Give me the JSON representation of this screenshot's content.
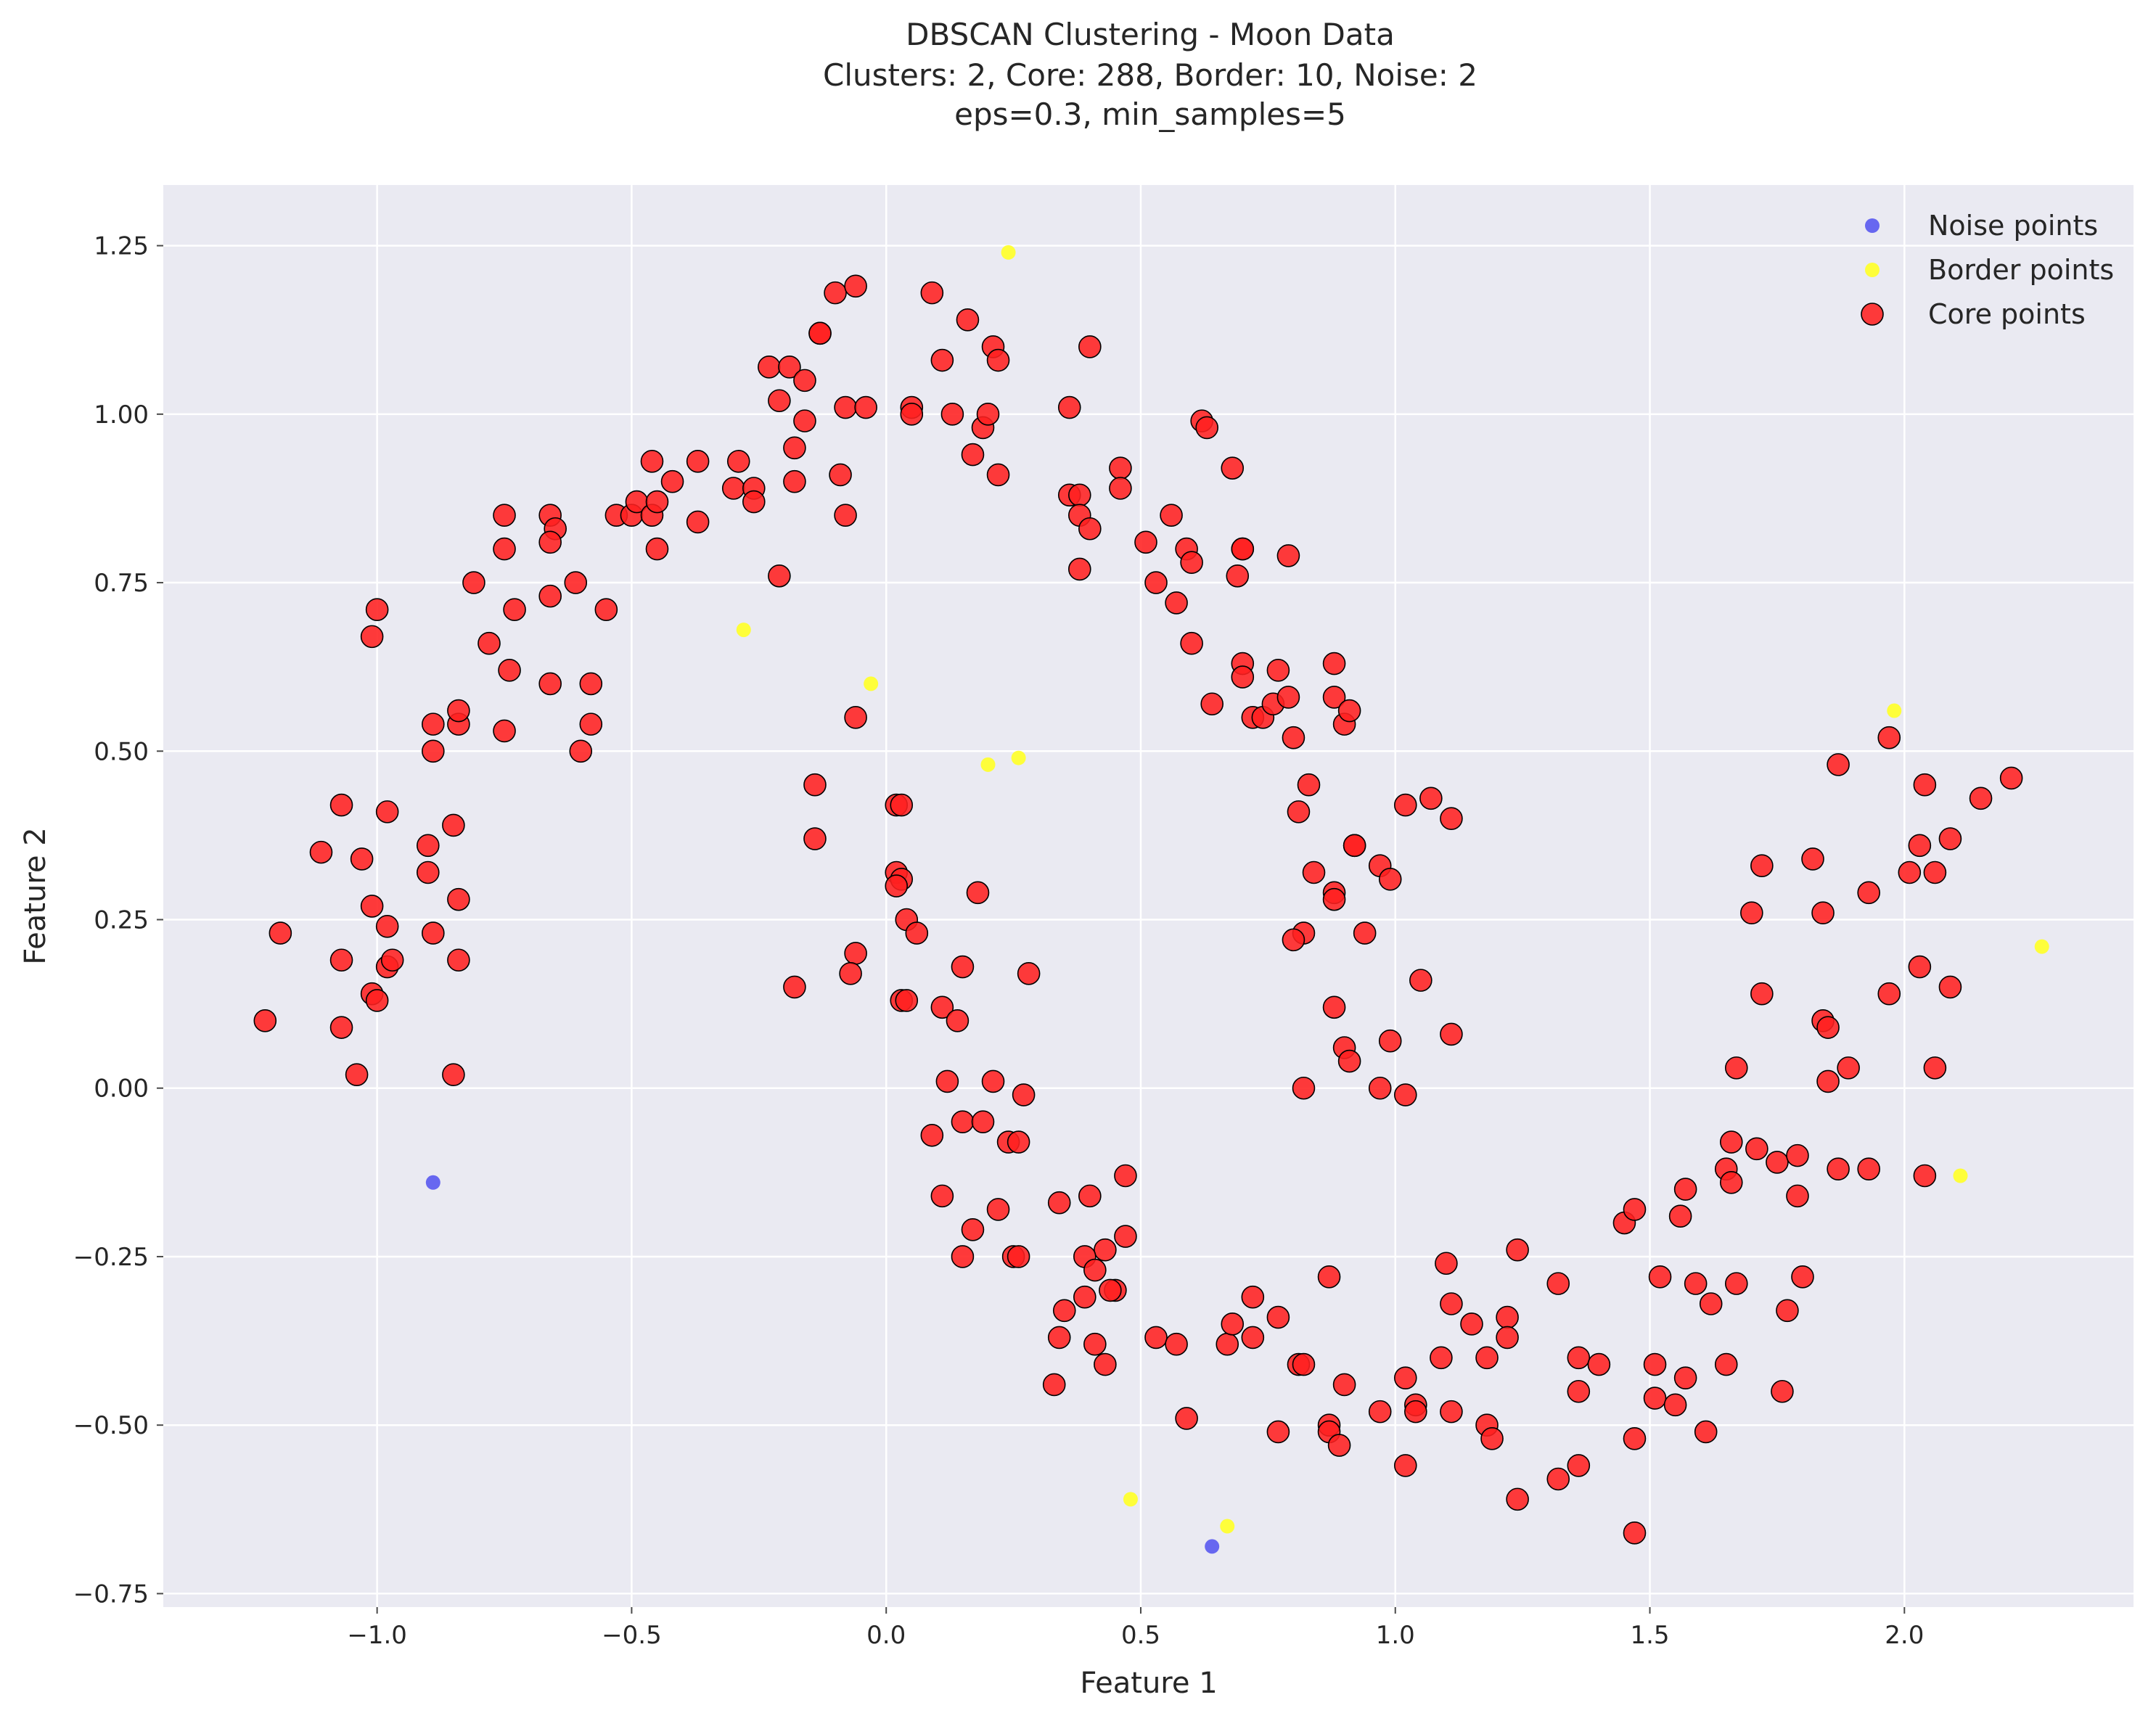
{
  "chart_data": {
    "type": "scatter",
    "title": "DBSCAN Clustering - Moon Data",
    "subtitle": "Clusters: 2, Core: 288, Border: 10, Noise: 2",
    "subtitle2": "eps=0.3, min_samples=5",
    "xlabel": "Feature 1",
    "ylabel": "Feature 2",
    "xlim": [
      -1.42,
      2.45
    ],
    "ylim": [
      -0.77,
      1.34
    ],
    "xticks": [
      -1.0,
      -0.5,
      0.0,
      0.5,
      1.0,
      1.5,
      2.0
    ],
    "xtick_labels": [
      "−1.0",
      "−0.5",
      "0.0",
      "0.5",
      "1.0",
      "1.5",
      "2.0"
    ],
    "yticks": [
      -0.75,
      -0.5,
      -0.25,
      0.0,
      0.25,
      0.5,
      0.75,
      1.0,
      1.25
    ],
    "ytick_labels": [
      "−0.75",
      "−0.50",
      "−0.25",
      "0.00",
      "0.25",
      "0.50",
      "0.75",
      "1.00",
      "1.25"
    ],
    "grid": true,
    "background": "#eaeaf2",
    "legend_position": "top-right",
    "series": [
      {
        "name": "Noise points",
        "color": "#5b5bf0",
        "marker": "small",
        "points": [
          [
            -0.89,
            -0.14
          ],
          [
            0.64,
            -0.68
          ]
        ]
      },
      {
        "name": "Border points",
        "color": "#ffff2a",
        "marker": "small",
        "points": [
          [
            0.24,
            1.24
          ],
          [
            -0.28,
            0.68
          ],
          [
            -0.03,
            0.6
          ],
          [
            0.2,
            0.48
          ],
          [
            0.26,
            0.49
          ],
          [
            1.98,
            0.56
          ],
          [
            2.27,
            0.21
          ],
          [
            2.11,
            -0.13
          ],
          [
            0.48,
            -0.61
          ],
          [
            0.67,
            -0.65
          ]
        ]
      },
      {
        "name": "Core points",
        "color": "#ff2020",
        "edge": "#000000",
        "marker": "large",
        "points": [
          [
            -1.22,
            0.1
          ],
          [
            -1.19,
            0.23
          ],
          [
            -1.11,
            0.35
          ],
          [
            -1.07,
            0.42
          ],
          [
            -1.07,
            0.19
          ],
          [
            -1.07,
            0.09
          ],
          [
            -1.04,
            0.02
          ],
          [
            -1.03,
            0.34
          ],
          [
            -1.01,
            0.27
          ],
          [
            -1.01,
            0.14
          ],
          [
            -1.0,
            0.13
          ],
          [
            -0.98,
            0.41
          ],
          [
            -0.98,
            0.24
          ],
          [
            -0.98,
            0.18
          ],
          [
            -0.97,
            0.19
          ],
          [
            -1.0,
            0.71
          ],
          [
            -1.01,
            0.67
          ],
          [
            -0.9,
            0.36
          ],
          [
            -0.9,
            0.32
          ],
          [
            -0.89,
            0.23
          ],
          [
            -0.89,
            0.54
          ],
          [
            -0.89,
            0.5
          ],
          [
            -0.85,
            0.39
          ],
          [
            -0.84,
            0.28
          ],
          [
            -0.84,
            0.19
          ],
          [
            -0.85,
            0.02
          ],
          [
            -0.84,
            0.54
          ],
          [
            -0.84,
            0.56
          ],
          [
            -0.81,
            0.75
          ],
          [
            -0.78,
            0.66
          ],
          [
            -0.75,
            0.85
          ],
          [
            -0.75,
            0.8
          ],
          [
            -0.74,
            0.62
          ],
          [
            -0.73,
            0.71
          ],
          [
            -0.75,
            0.53
          ],
          [
            -0.66,
            0.85
          ],
          [
            -0.65,
            0.83
          ],
          [
            -0.66,
            0.81
          ],
          [
            -0.66,
            0.73
          ],
          [
            -0.66,
            0.6
          ],
          [
            -0.61,
            0.75
          ],
          [
            -0.58,
            0.6
          ],
          [
            -0.58,
            0.54
          ],
          [
            -0.6,
            0.5
          ],
          [
            -0.55,
            0.71
          ],
          [
            -0.53,
            0.85
          ],
          [
            -0.5,
            0.85
          ],
          [
            -0.49,
            0.87
          ],
          [
            -0.46,
            0.93
          ],
          [
            -0.46,
            0.85
          ],
          [
            -0.45,
            0.87
          ],
          [
            -0.45,
            0.8
          ],
          [
            -0.42,
            0.9
          ],
          [
            -0.37,
            0.93
          ],
          [
            -0.37,
            0.84
          ],
          [
            -0.3,
            0.89
          ],
          [
            -0.29,
            0.93
          ],
          [
            -0.26,
            0.89
          ],
          [
            -0.26,
            0.87
          ],
          [
            -0.23,
            1.07
          ],
          [
            -0.21,
            1.02
          ],
          [
            -0.21,
            0.76
          ],
          [
            -0.19,
            1.07
          ],
          [
            -0.18,
            0.95
          ],
          [
            -0.18,
            0.9
          ],
          [
            -0.16,
            1.05
          ],
          [
            -0.16,
            0.99
          ],
          [
            -0.13,
            1.12
          ],
          [
            -0.13,
            1.12
          ],
          [
            -0.1,
            1.18
          ],
          [
            -0.08,
            1.01
          ],
          [
            -0.09,
            0.91
          ],
          [
            -0.08,
            0.85
          ],
          [
            -0.06,
            1.19
          ],
          [
            -0.04,
            1.01
          ],
          [
            -0.06,
            0.55
          ],
          [
            -0.14,
            0.45
          ],
          [
            -0.14,
            0.37
          ],
          [
            -0.18,
            0.15
          ],
          [
            -0.06,
            0.2
          ],
          [
            -0.07,
            0.17
          ],
          [
            0.05,
            1.01
          ],
          [
            0.05,
            1.0
          ],
          [
            0.09,
            1.18
          ],
          [
            0.11,
            1.08
          ],
          [
            0.13,
            1.0
          ],
          [
            0.16,
            1.14
          ],
          [
            0.17,
            0.94
          ],
          [
            0.19,
            0.98
          ],
          [
            0.2,
            1.0
          ],
          [
            0.21,
            1.1
          ],
          [
            0.22,
            1.08
          ],
          [
            0.22,
            0.91
          ],
          [
            0.02,
            0.42
          ],
          [
            0.03,
            0.42
          ],
          [
            0.02,
            0.32
          ],
          [
            0.03,
            0.31
          ],
          [
            0.02,
            0.3
          ],
          [
            0.04,
            0.25
          ],
          [
            0.06,
            0.23
          ],
          [
            0.03,
            0.13
          ],
          [
            0.04,
            0.13
          ],
          [
            0.18,
            0.29
          ],
          [
            0.15,
            0.18
          ],
          [
            0.11,
            0.12
          ],
          [
            0.14,
            0.1
          ],
          [
            0.28,
            0.17
          ],
          [
            0.12,
            0.01
          ],
          [
            0.21,
            0.01
          ],
          [
            0.27,
            -0.01
          ],
          [
            0.09,
            -0.07
          ],
          [
            0.15,
            -0.05
          ],
          [
            0.19,
            -0.05
          ],
          [
            0.24,
            -0.08
          ],
          [
            0.26,
            -0.08
          ],
          [
            0.11,
            -0.16
          ],
          [
            0.22,
            -0.18
          ],
          [
            0.17,
            -0.21
          ],
          [
            0.15,
            -0.25
          ],
          [
            0.25,
            -0.25
          ],
          [
            0.26,
            -0.25
          ],
          [
            0.36,
            1.01
          ],
          [
            0.4,
            1.1
          ],
          [
            0.36,
            0.88
          ],
          [
            0.38,
            0.88
          ],
          [
            0.38,
            0.85
          ],
          [
            0.4,
            0.83
          ],
          [
            0.38,
            0.77
          ],
          [
            0.46,
            0.92
          ],
          [
            0.46,
            0.89
          ],
          [
            0.51,
            0.81
          ],
          [
            0.53,
            0.75
          ],
          [
            0.56,
            0.85
          ],
          [
            0.57,
            0.72
          ],
          [
            0.59,
            0.8
          ],
          [
            0.6,
            0.78
          ],
          [
            0.6,
            0.66
          ],
          [
            0.62,
            0.99
          ],
          [
            0.63,
            0.98
          ],
          [
            0.64,
            0.57
          ],
          [
            0.68,
            0.92
          ],
          [
            0.69,
            0.76
          ],
          [
            0.7,
            0.8
          ],
          [
            0.7,
            0.8
          ],
          [
            0.7,
            0.63
          ],
          [
            0.7,
            0.61
          ],
          [
            0.72,
            0.55
          ],
          [
            0.74,
            0.55
          ],
          [
            0.76,
            0.57
          ],
          [
            0.77,
            0.62
          ],
          [
            0.79,
            0.79
          ],
          [
            0.79,
            0.58
          ],
          [
            0.8,
            0.52
          ],
          [
            0.81,
            0.41
          ],
          [
            0.83,
            0.45
          ],
          [
            0.88,
            0.63
          ],
          [
            0.88,
            0.58
          ],
          [
            0.9,
            0.54
          ],
          [
            0.91,
            0.56
          ],
          [
            0.92,
            0.36
          ],
          [
            0.92,
            0.36
          ],
          [
            0.84,
            0.32
          ],
          [
            0.88,
            0.29
          ],
          [
            0.88,
            0.28
          ],
          [
            0.82,
            0.23
          ],
          [
            0.8,
            0.22
          ],
          [
            0.94,
            0.23
          ],
          [
            0.97,
            0.33
          ],
          [
            0.99,
            0.31
          ],
          [
            1.02,
            0.42
          ],
          [
            1.07,
            0.43
          ],
          [
            1.11,
            0.4
          ],
          [
            1.05,
            0.16
          ],
          [
            1.11,
            0.08
          ],
          [
            0.88,
            0.12
          ],
          [
            0.9,
            0.06
          ],
          [
            0.91,
            0.04
          ],
          [
            0.99,
            0.07
          ],
          [
            0.97,
            0.0
          ],
          [
            1.02,
            -0.01
          ],
          [
            0.82,
            0.0
          ],
          [
            0.34,
            -0.17
          ],
          [
            0.4,
            -0.16
          ],
          [
            0.47,
            -0.13
          ],
          [
            0.47,
            -0.22
          ],
          [
            0.43,
            -0.24
          ],
          [
            0.39,
            -0.25
          ],
          [
            0.41,
            -0.27
          ],
          [
            0.45,
            -0.3
          ],
          [
            0.44,
            -0.3
          ],
          [
            0.39,
            -0.31
          ],
          [
            0.35,
            -0.33
          ],
          [
            0.34,
            -0.37
          ],
          [
            0.41,
            -0.38
          ],
          [
            0.43,
            -0.41
          ],
          [
            0.33,
            -0.44
          ],
          [
            0.53,
            -0.37
          ],
          [
            0.57,
            -0.38
          ],
          [
            0.59,
            -0.49
          ],
          [
            0.67,
            -0.38
          ],
          [
            0.68,
            -0.35
          ],
          [
            0.72,
            -0.31
          ],
          [
            0.72,
            -0.37
          ],
          [
            0.77,
            -0.34
          ],
          [
            0.77,
            -0.51
          ],
          [
            0.81,
            -0.41
          ],
          [
            0.82,
            -0.41
          ],
          [
            0.87,
            -0.28
          ],
          [
            0.87,
            -0.5
          ],
          [
            0.87,
            -0.51
          ],
          [
            0.89,
            -0.53
          ],
          [
            0.9,
            -0.44
          ],
          [
            0.97,
            -0.48
          ],
          [
            1.02,
            -0.43
          ],
          [
            1.02,
            -0.56
          ],
          [
            1.04,
            -0.47
          ],
          [
            1.04,
            -0.48
          ],
          [
            1.09,
            -0.4
          ],
          [
            1.1,
            -0.26
          ],
          [
            1.11,
            -0.32
          ],
          [
            1.11,
            -0.48
          ],
          [
            1.15,
            -0.35
          ],
          [
            1.18,
            -0.4
          ],
          [
            1.18,
            -0.5
          ],
          [
            1.19,
            -0.52
          ],
          [
            1.22,
            -0.34
          ],
          [
            1.22,
            -0.37
          ],
          [
            1.24,
            -0.24
          ],
          [
            1.24,
            -0.61
          ],
          [
            1.32,
            -0.29
          ],
          [
            1.32,
            -0.58
          ],
          [
            1.36,
            -0.4
          ],
          [
            1.36,
            -0.45
          ],
          [
            1.36,
            -0.56
          ],
          [
            1.4,
            -0.41
          ],
          [
            1.45,
            -0.2
          ],
          [
            1.47,
            -0.18
          ],
          [
            1.47,
            -0.52
          ],
          [
            1.47,
            -0.66
          ],
          [
            1.51,
            -0.41
          ],
          [
            1.51,
            -0.46
          ],
          [
            1.52,
            -0.28
          ],
          [
            1.55,
            -0.47
          ],
          [
            1.56,
            -0.19
          ],
          [
            1.57,
            -0.15
          ],
          [
            1.57,
            -0.43
          ],
          [
            1.59,
            -0.29
          ],
          [
            1.61,
            -0.51
          ],
          [
            1.62,
            -0.32
          ],
          [
            1.65,
            -0.12
          ],
          [
            1.65,
            -0.41
          ],
          [
            1.66,
            -0.08
          ],
          [
            1.66,
            -0.14
          ],
          [
            1.67,
            -0.29
          ],
          [
            1.71,
            -0.09
          ],
          [
            1.75,
            -0.11
          ],
          [
            1.76,
            -0.45
          ],
          [
            1.77,
            -0.33
          ],
          [
            1.79,
            -0.1
          ],
          [
            1.79,
            -0.16
          ],
          [
            1.8,
            -0.28
          ],
          [
            1.87,
            -0.12
          ],
          [
            1.93,
            -0.12
          ],
          [
            2.04,
            -0.13
          ],
          [
            1.67,
            0.03
          ],
          [
            1.7,
            0.26
          ],
          [
            1.72,
            0.33
          ],
          [
            1.72,
            0.14
          ],
          [
            1.82,
            0.34
          ],
          [
            1.84,
            0.26
          ],
          [
            1.84,
            0.1
          ],
          [
            1.85,
            0.09
          ],
          [
            1.85,
            0.01
          ],
          [
            1.87,
            0.48
          ],
          [
            1.89,
            0.03
          ],
          [
            1.93,
            0.29
          ],
          [
            1.97,
            0.14
          ],
          [
            1.97,
            0.52
          ],
          [
            2.01,
            0.32
          ],
          [
            2.03,
            0.36
          ],
          [
            2.03,
            0.18
          ],
          [
            2.04,
            0.45
          ],
          [
            2.06,
            0.32
          ],
          [
            2.06,
            0.03
          ],
          [
            2.09,
            0.37
          ],
          [
            2.09,
            0.15
          ],
          [
            2.15,
            0.43
          ],
          [
            2.21,
            0.46
          ]
        ]
      }
    ]
  }
}
